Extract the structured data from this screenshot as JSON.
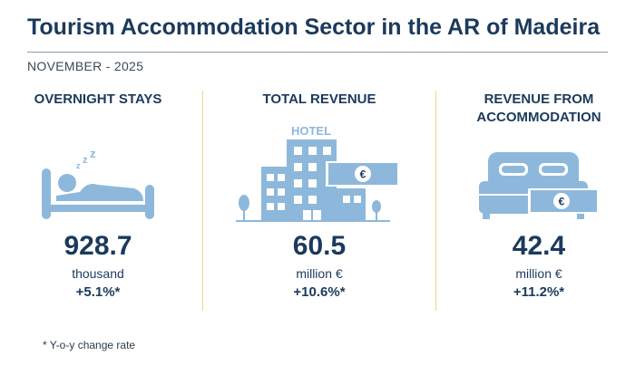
{
  "header": {
    "title": "Tourism Accommodation Sector in the AR of Madeira",
    "subtitle": "NOVEMBER - 2025"
  },
  "indicators": [
    {
      "heading": "OVERNIGHT STAYS",
      "value": "928.7",
      "unit": "thousand",
      "change": "+5.1%*",
      "icon": "sleeping-person-in-bed-icon"
    },
    {
      "heading": "TOTAL REVENUE",
      "value": "60.5",
      "unit": "million €",
      "change": "+10.6%*",
      "icon": "hotel-building-with-banknote-icon",
      "icon_text": "HOTEL",
      "icon_currency": "€"
    },
    {
      "heading": "REVENUE FROM ACCOMMODATION",
      "value": "42.4",
      "unit": "million €",
      "change": "+11.2%*",
      "icon": "double-bed-with-banknote-icon",
      "icon_currency": "€"
    }
  ],
  "footnote": "* Y-o-y change rate",
  "colors": {
    "primary": "#1b3a5c",
    "icon": "#8db8dc",
    "divider": "#f0d58a",
    "background": "#ffffff"
  }
}
